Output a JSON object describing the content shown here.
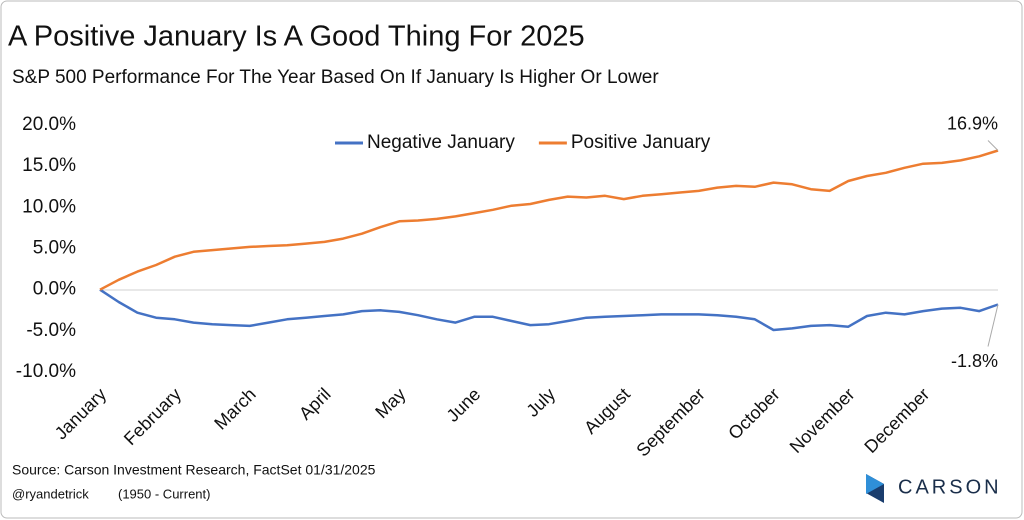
{
  "chart_data": {
    "type": "line",
    "title": "A Positive January Is A Good Thing For 2025",
    "subtitle": "S&P 500 Performance For The Year Based On If January Is Higher Or Lower",
    "source": "Source: Carson Investment Research, FactSet 01/31/2025",
    "credit": "@ryandetrick",
    "period": "(1950 - Current)",
    "logo": "CARSON",
    "categories": [
      "January",
      null,
      null,
      null,
      "February",
      null,
      null,
      null,
      "March",
      null,
      null,
      null,
      "April",
      null,
      null,
      null,
      "May",
      null,
      null,
      null,
      "June",
      null,
      null,
      null,
      "July",
      null,
      null,
      null,
      "August",
      null,
      null,
      null,
      "September",
      null,
      null,
      null,
      "October",
      null,
      null,
      null,
      "November",
      null,
      null,
      null,
      "December",
      null,
      null,
      null,
      null
    ],
    "series": [
      {
        "name": "Negative January",
        "color": "#4472c4",
        "values": [
          0,
          -1.5,
          -2.8,
          -3.4,
          -3.6,
          -4.0,
          -4.2,
          -4.3,
          -4.4,
          -4.0,
          -3.6,
          -3.4,
          -3.2,
          -3.0,
          -2.6,
          -2.5,
          -2.7,
          -3.1,
          -3.6,
          -4.0,
          -3.3,
          -3.3,
          -3.8,
          -4.3,
          -4.2,
          -3.8,
          -3.4,
          -3.3,
          -3.2,
          -3.1,
          -3.0,
          -3.0,
          -3.0,
          -3.1,
          -3.3,
          -3.6,
          -4.9,
          -4.7,
          -4.4,
          -4.3,
          -4.5,
          -3.2,
          -2.8,
          -3.0,
          -2.6,
          -2.3,
          -2.2,
          -2.6,
          -1.8
        ],
        "value_labels": [
          null,
          null,
          null,
          null,
          null,
          null,
          null,
          null,
          null,
          null,
          null,
          null,
          null,
          null,
          null,
          null,
          null,
          null,
          null,
          null,
          null,
          null,
          null,
          null,
          null,
          null,
          null,
          null,
          null,
          null,
          null,
          null,
          null,
          null,
          null,
          null,
          null,
          null,
          null,
          null,
          null,
          null,
          null,
          null,
          null,
          null,
          null,
          null,
          "-1.8%"
        ]
      },
      {
        "name": "Positive January",
        "color": "#ed7d31",
        "values": [
          0,
          1.2,
          2.2,
          3.0,
          4.0,
          4.6,
          4.8,
          5.0,
          5.2,
          5.3,
          5.4,
          5.6,
          5.8,
          6.2,
          6.8,
          7.6,
          8.3,
          8.4,
          8.6,
          8.9,
          9.3,
          9.7,
          10.2,
          10.4,
          10.9,
          11.3,
          11.2,
          11.4,
          11.0,
          11.4,
          11.6,
          11.8,
          12.0,
          12.4,
          12.6,
          12.5,
          13.0,
          12.8,
          12.2,
          12.0,
          13.2,
          13.8,
          14.2,
          14.8,
          15.3,
          15.4,
          15.7,
          16.2,
          16.9
        ],
        "value_labels": [
          null,
          null,
          null,
          null,
          null,
          null,
          null,
          null,
          null,
          null,
          null,
          null,
          null,
          null,
          null,
          null,
          null,
          null,
          null,
          null,
          null,
          null,
          null,
          null,
          null,
          null,
          null,
          null,
          null,
          null,
          null,
          null,
          null,
          null,
          null,
          null,
          null,
          null,
          null,
          null,
          null,
          null,
          null,
          null,
          null,
          null,
          null,
          null,
          "16.9%"
        ]
      }
    ],
    "ylim": [
      -10,
      20
    ],
    "yticks": [
      {
        "value": -10,
        "label": "-10.0%"
      },
      {
        "value": -5,
        "label": "-5.0%"
      },
      {
        "value": 0,
        "label": "0.0%"
      },
      {
        "value": 5,
        "label": "5.0%"
      },
      {
        "value": 10,
        "label": "10.0%"
      },
      {
        "value": 15,
        "label": "15.0%"
      },
      {
        "value": 20,
        "label": "20.0%"
      }
    ],
    "legend": "top",
    "grid": false
  }
}
